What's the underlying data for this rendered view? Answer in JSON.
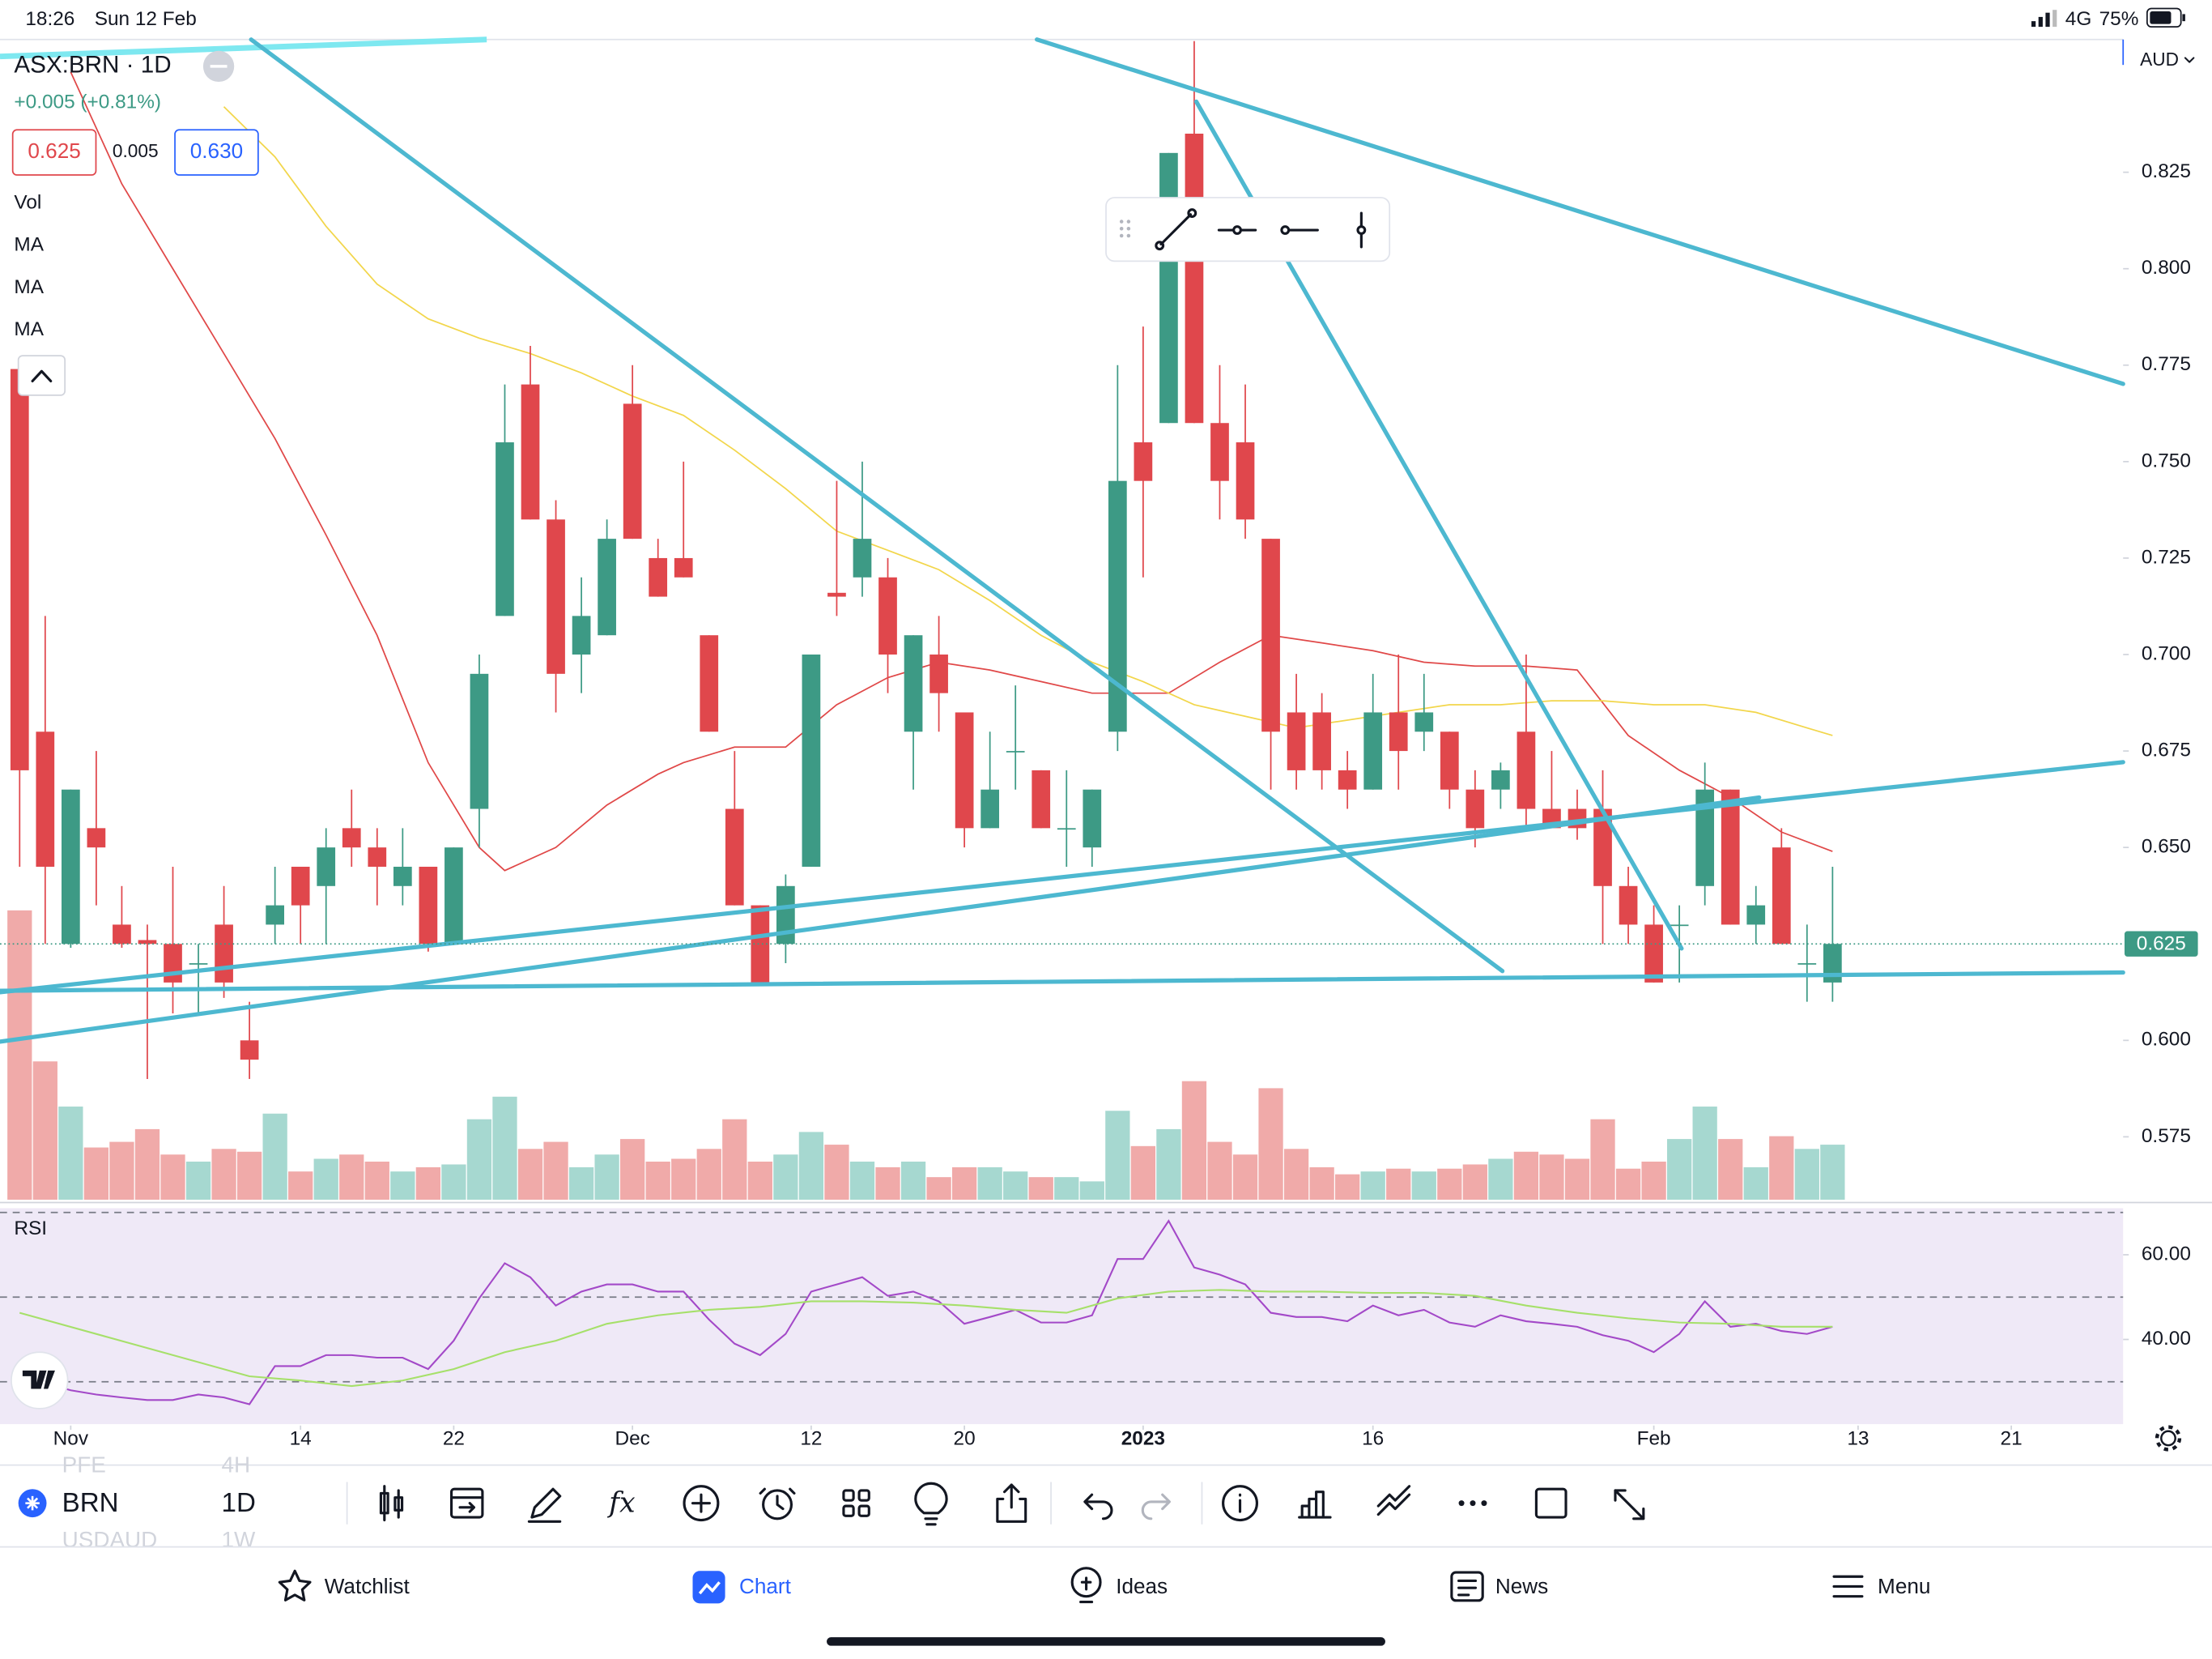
{
  "status_bar": {
    "time": "18:26",
    "date": "Sun 12 Feb",
    "network": "4G",
    "battery": "75%"
  },
  "header": {
    "symbol": "ASX:BRN · 1D",
    "change": "+0.005 (+0.81%)",
    "bid": "0.625",
    "spread": "0.005",
    "ask": "0.630",
    "currency": "AUD"
  },
  "chart_data": {
    "type": "candlestick",
    "indicators": [
      "Vol",
      "MA",
      "MA",
      "MA"
    ],
    "xlim": [
      -0.77,
      82.38
    ],
    "xticks": [
      {
        "value": 2,
        "label": "Nov"
      },
      {
        "value": 11,
        "label": "14"
      },
      {
        "value": 17,
        "label": "22"
      },
      {
        "value": 24,
        "label": "Dec"
      },
      {
        "value": 31,
        "label": "12"
      },
      {
        "value": 37,
        "label": "20"
      },
      {
        "value": 44,
        "label": "2023"
      },
      {
        "value": 53,
        "label": "16"
      },
      {
        "value": 64,
        "label": "Feb"
      },
      {
        "value": 72,
        "label": "13"
      },
      {
        "value": 78,
        "label": "21"
      }
    ],
    "ylim": [
      0.5587,
      0.8594
    ],
    "yticks": [
      0.825,
      {
        "value": 0.8,
        "label": "0.800"
      },
      0.775,
      {
        "value": 0.75,
        "label": "0.750"
      },
      0.725,
      {
        "value": 0.7,
        "label": "0.700"
      },
      0.675,
      {
        "value": 0.65,
        "label": "0.650"
      },
      {
        "value": 0.6,
        "label": "0.600"
      },
      0.575
    ],
    "up_color": "#3d9a85",
    "down_color": "#e0474c",
    "volume_up_color": "#a6d8d0",
    "volume_down_color": "#f0aaa9",
    "vlim": [
      0,
      822
    ],
    "open": [
      0.774,
      0.68,
      0.625,
      0.655,
      0.63,
      0.626,
      0.625,
      0.62,
      0.63,
      0.6,
      0.63,
      0.645,
      0.64,
      0.655,
      0.65,
      0.64,
      0.645,
      0.625,
      0.66,
      0.71,
      0.77,
      0.735,
      0.7,
      0.705,
      0.765,
      0.725,
      0.725,
      0.705,
      0.66,
      0.635,
      0.625,
      0.645,
      0.716,
      0.72,
      0.72,
      0.68,
      0.7,
      0.685,
      0.655,
      0.675,
      0.67,
      0.655,
      0.65,
      0.68,
      0.755,
      0.76,
      0.835,
      0.76,
      0.755,
      0.73,
      0.685,
      0.685,
      0.67,
      0.665,
      0.685,
      0.68,
      0.68,
      0.665,
      0.665,
      0.68,
      0.66,
      0.66,
      0.66,
      0.64,
      0.63,
      0.63,
      0.64,
      0.665,
      0.63,
      0.65,
      0.62,
      0.615
    ],
    "high": [
      0.776,
      0.71,
      0.665,
      0.675,
      0.64,
      0.63,
      0.645,
      0.625,
      0.64,
      0.61,
      0.645,
      0.645,
      0.655,
      0.665,
      0.655,
      0.655,
      0.645,
      0.65,
      0.7,
      0.77,
      0.78,
      0.74,
      0.72,
      0.735,
      0.775,
      0.73,
      0.75,
      0.705,
      0.675,
      0.635,
      0.643,
      0.7,
      0.745,
      0.75,
      0.725,
      0.705,
      0.71,
      0.685,
      0.68,
      0.692,
      0.67,
      0.67,
      0.665,
      0.775,
      0.785,
      0.83,
      0.859,
      0.775,
      0.77,
      0.73,
      0.695,
      0.69,
      0.675,
      0.695,
      0.7,
      0.695,
      0.68,
      0.67,
      0.672,
      0.7,
      0.675,
      0.665,
      0.67,
      0.645,
      0.635,
      0.635,
      0.672,
      0.665,
      0.64,
      0.655,
      0.63,
      0.645
    ],
    "low": [
      0.645,
      0.625,
      0.624,
      0.635,
      0.624,
      0.59,
      0.607,
      0.607,
      0.611,
      0.59,
      0.625,
      0.625,
      0.625,
      0.645,
      0.635,
      0.635,
      0.623,
      0.625,
      0.65,
      0.71,
      0.735,
      0.685,
      0.69,
      0.705,
      0.73,
      0.715,
      0.72,
      0.68,
      0.635,
      0.615,
      0.62,
      0.645,
      0.71,
      0.715,
      0.69,
      0.665,
      0.68,
      0.65,
      0.655,
      0.665,
      0.655,
      0.645,
      0.645,
      0.675,
      0.72,
      0.76,
      0.76,
      0.735,
      0.73,
      0.665,
      0.665,
      0.665,
      0.66,
      0.665,
      0.665,
      0.675,
      0.66,
      0.65,
      0.66,
      0.655,
      0.655,
      0.652,
      0.625,
      0.625,
      0.615,
      0.615,
      0.635,
      0.63,
      0.625,
      0.625,
      0.61,
      0.61
    ],
    "close": [
      0.67,
      0.645,
      0.665,
      0.65,
      0.625,
      0.625,
      0.615,
      0.62,
      0.615,
      0.595,
      0.635,
      0.635,
      0.65,
      0.65,
      0.645,
      0.645,
      0.625,
      0.65,
      0.695,
      0.755,
      0.735,
      0.695,
      0.71,
      0.73,
      0.73,
      0.715,
      0.72,
      0.68,
      0.635,
      0.615,
      0.64,
      0.7,
      0.715,
      0.73,
      0.7,
      0.705,
      0.69,
      0.655,
      0.665,
      0.675,
      0.655,
      0.655,
      0.665,
      0.745,
      0.745,
      0.83,
      0.76,
      0.745,
      0.735,
      0.68,
      0.67,
      0.67,
      0.665,
      0.685,
      0.675,
      0.685,
      0.665,
      0.655,
      0.67,
      0.66,
      0.655,
      0.655,
      0.64,
      0.63,
      0.615,
      0.63,
      0.665,
      0.63,
      0.635,
      0.625,
      0.62,
      0.625
    ],
    "volume": [
      205,
      98,
      66,
      37,
      41,
      50,
      32,
      27,
      36,
      34,
      61,
      20,
      29,
      32,
      27,
      20,
      23,
      25,
      57,
      73,
      36,
      41,
      23,
      32,
      43,
      27,
      29,
      36,
      57,
      27,
      32,
      48,
      39,
      27,
      23,
      27,
      16,
      23,
      23,
      20,
      16,
      16,
      13,
      63,
      38,
      50,
      84,
      41,
      32,
      79,
      36,
      23,
      18,
      20,
      22,
      20,
      22,
      25,
      29,
      34,
      32,
      29,
      57,
      22,
      27,
      43,
      66,
      43,
      23,
      45,
      36,
      39
    ],
    "ma_lines": [
      {
        "color": "#e04848",
        "x": [
          2,
          4,
          6,
          8,
          10,
          12,
          14,
          16,
          18,
          19,
          21,
          23,
          25,
          26,
          28,
          30,
          32,
          34,
          36,
          38,
          40,
          42,
          43,
          45,
          47,
          49,
          51,
          53,
          55,
          57,
          59,
          61,
          63,
          65,
          67,
          69,
          71
        ],
        "values": [
          0.851,
          0.822,
          0.8,
          0.778,
          0.756,
          0.731,
          0.705,
          0.672,
          0.65,
          0.644,
          0.65,
          0.661,
          0.669,
          0.672,
          0.676,
          0.676,
          0.687,
          0.694,
          0.698,
          0.696,
          0.693,
          0.69,
          0.69,
          0.69,
          0.698,
          0.705,
          0.703,
          0.701,
          0.698,
          0.697,
          0.697,
          0.696,
          0.679,
          0.67,
          0.663,
          0.654,
          0.649
        ]
      },
      {
        "color": "#f2d64b",
        "x": [
          8,
          10,
          12,
          14,
          16,
          18,
          20,
          22,
          24,
          26,
          28,
          30,
          32,
          34,
          36,
          38,
          40,
          42,
          44,
          46,
          48,
          50,
          52,
          54,
          56,
          58,
          60,
          62,
          64,
          66,
          68,
          70,
          71
        ],
        "values": [
          0.842,
          0.829,
          0.811,
          0.796,
          0.787,
          0.782,
          0.778,
          0.773,
          0.767,
          0.762,
          0.753,
          0.743,
          0.732,
          0.727,
          0.722,
          0.714,
          0.705,
          0.698,
          0.693,
          0.687,
          0.684,
          0.681,
          0.683,
          0.685,
          0.687,
          0.687,
          0.688,
          0.688,
          0.687,
          0.687,
          0.685,
          0.681,
          0.679
        ]
      }
    ],
    "rsi": {
      "name": "RSI",
      "color": "#a349c8",
      "ma_color": "#a6e06a",
      "ylim": [
        20,
        71
      ],
      "levels": [
        70,
        50,
        30
      ],
      "yticks": [
        {
          "value": 60,
          "label": "60.00"
        },
        {
          "value": 40,
          "label": "40.00"
        }
      ],
      "values": [
        31.3,
        29.7,
        28.0,
        27.0,
        26.3,
        25.7,
        25.7,
        27.0,
        26.3,
        24.7,
        33.7,
        33.7,
        36.3,
        36.3,
        35.7,
        35.7,
        33.0,
        39.7,
        49.7,
        58.0,
        54.7,
        48.0,
        51.3,
        53.0,
        53.0,
        51.3,
        51.3,
        44.7,
        39.0,
        36.3,
        41.3,
        51.3,
        53.0,
        54.7,
        50.3,
        51.3,
        49.0,
        43.7,
        45.3,
        47.0,
        44.0,
        44.0,
        45.7,
        59.0,
        59.0,
        68.0,
        57.0,
        55.3,
        53.0,
        46.3,
        45.3,
        45.3,
        44.3,
        48.0,
        45.7,
        47.0,
        44.0,
        43.0,
        45.7,
        44.3,
        43.7,
        43.0,
        41.0,
        39.7,
        37.0,
        41.3,
        49.0,
        43.0,
        43.7,
        42.0,
        41.3,
        43.0
      ],
      "ma_x": [
        0,
        9,
        11,
        13,
        15,
        17,
        19,
        21,
        23,
        25,
        27,
        29,
        31,
        33,
        35,
        37,
        39,
        41,
        43,
        45,
        47,
        49,
        51,
        53,
        55,
        57,
        59,
        61,
        63,
        65,
        67,
        69,
        71
      ],
      "ma_values": [
        46.3,
        31.3,
        30.3,
        29.0,
        30.3,
        33.0,
        37.0,
        39.7,
        43.7,
        45.7,
        47.0,
        47.7,
        49.0,
        49.0,
        48.7,
        48.0,
        47.0,
        46.3,
        49.7,
        51.3,
        51.7,
        51.3,
        51.3,
        51.0,
        51.0,
        50.3,
        48.0,
        46.3,
        45.0,
        44.0,
        43.7,
        43.0,
        43.0
      ]
    }
  },
  "toolbar": {
    "symbol": "BRN",
    "interval": "1D",
    "picker_above": [
      "PFE",
      "4H"
    ],
    "picker_below": [
      "USDAUD",
      "1W"
    ]
  },
  "tabs": [
    "Watchlist",
    "Chart",
    "Ideas",
    "News",
    "Menu"
  ]
}
